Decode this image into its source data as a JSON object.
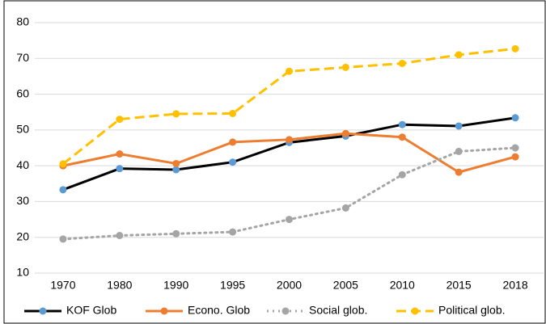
{
  "chart_data": {
    "type": "line",
    "categories": [
      "1970",
      "1980",
      "1990",
      "1995",
      "2000",
      "2005",
      "2010",
      "2015",
      "2018"
    ],
    "series": [
      {
        "name": "KOF Glob",
        "color": "#000000",
        "marker_color": "#5b9bd5",
        "dash": "solid",
        "values": [
          33.3,
          39.2,
          38.9,
          41,
          46.5,
          48.3,
          51.5,
          51.1,
          53.4
        ]
      },
      {
        "name": "Econo. Glob",
        "color": "#ed7d31",
        "marker_color": "#ed7d31",
        "dash": "solid",
        "values": [
          40,
          43.3,
          40.6,
          46.6,
          47.3,
          49,
          48,
          38.2,
          42.5
        ]
      },
      {
        "name": "Social glob.",
        "color": "#a5a5a5",
        "marker_color": "#a5a5a5",
        "dash": "dotted",
        "values": [
          19.5,
          20.5,
          21,
          21.5,
          25,
          28.2,
          37.5,
          44,
          45
        ]
      },
      {
        "name": "Political glob.",
        "color": "#ffc000",
        "marker_color": "#ffc000",
        "dash": "dashed",
        "values": [
          40.5,
          53,
          54.5,
          54.6,
          66.4,
          67.5,
          68.6,
          71,
          72.7
        ]
      }
    ],
    "ylim": [
      10,
      80
    ],
    "yticks": [
      10,
      20,
      30,
      40,
      50,
      60,
      70,
      80
    ],
    "grid": true,
    "legend": "bottom"
  }
}
